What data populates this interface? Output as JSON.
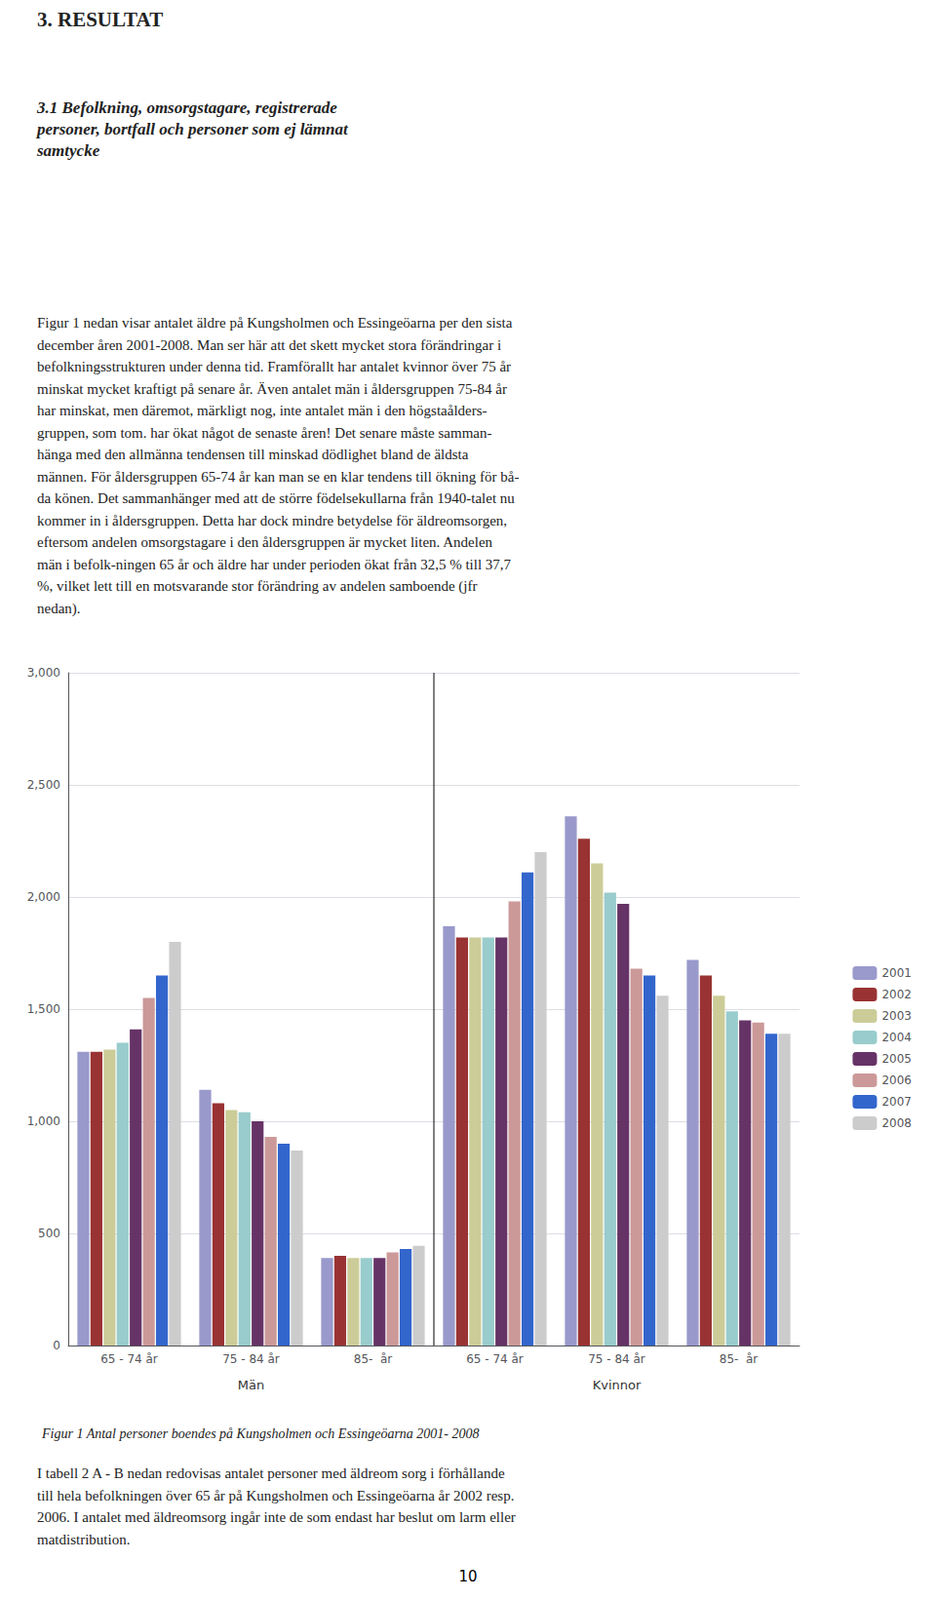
{
  "page": {
    "heading": "3. RESULTAT",
    "subheading": "3.1 Befolkning, omsorgstagare, registrerade\npersoner, bortfall och personer som ej lämnat\nsamtycke",
    "paragraph": "Figur 1 nedan visar antalet äldre på Kungsholmen och Essingeöarna per den sista\ndecember åren 2001-2008. Man ser här att det skett mycket stora förändringar i\nbefolkningsstrukturen under denna tid. Framförallt har antalet kvinnor över 75 år\nminskat mycket kraftigt på senare år. Även antalet män i åldersgruppen 75-84 år\nhar minskat, men däremot, märkligt nog, inte antalet män i den högstaålders-\ngruppen, som tom. har ökat något de senaste åren! Det senare måste samman-\nhänga med den allmänna tendensen till minskad dödlighet bland de äldsta\nmännen. För åldersgruppen 65-74 år kan man se en klar tendens till ökning för bå-\nda könen. Det sammanhänger med att de större födelsekullarna från 1940-talet nu\nkommer in i åldersgruppen. Detta har dock mindre betydelse för äldreomsorgen,\neftersom andelen omsorgstagare i den åldersgruppen är mycket liten. Andelen\nmän i befolk-ningen 65 år och äldre har under perioden ökat från 32,5 % till 37,7\n%, vilket lett till en motsvarande stor förändring av andelen samboende (jfr\nnedan).",
    "text_after": "I tabell 2 A - B nedan redovisas antalet personer med äldreom sorg i förhållande\ntill hela befolkningen över 65 år på Kungsholmen och Essingeöarna år 2002 resp.\n2006. I antalet med äldreomsorg ingår inte de som endast har beslut om larm eller\nmatdistribution.",
    "page_number": "10"
  },
  "chart_data": {
    "type": "bar",
    "title": "Figur 1 Antal personer boendes på Kungsholmen och Essingeöarna 2001- 2008",
    "categories": [
      "65 - 74 år",
      "75 - 84 år",
      "85-  år",
      "65 - 74 år",
      "75 - 84 år",
      "85-  år"
    ],
    "annotations": [
      "Män",
      "Kvinnor"
    ],
    "series": [
      {
        "name": "2001",
        "color": "#9999cc",
        "values": [
          1310,
          1140,
          390,
          1870,
          2360,
          1720
        ]
      },
      {
        "name": "2002",
        "color": "#993333",
        "values": [
          1310,
          1080,
          400,
          1820,
          2260,
          1650
        ]
      },
      {
        "name": "2003",
        "color": "#cccc99",
        "values": [
          1320,
          1050,
          390,
          1820,
          2150,
          1560
        ]
      },
      {
        "name": "2004",
        "color": "#99cccc",
        "values": [
          1350,
          1040,
          390,
          1820,
          2020,
          1490
        ]
      },
      {
        "name": "2005",
        "color": "#663366",
        "values": [
          1410,
          1000,
          390,
          1820,
          1970,
          1450
        ]
      },
      {
        "name": "2006",
        "color": "#cc9999",
        "values": [
          1550,
          930,
          415,
          1980,
          1680,
          1440
        ]
      },
      {
        "name": "2007",
        "color": "#3366cc",
        "values": [
          1650,
          900,
          430,
          2110,
          1650,
          1390
        ]
      },
      {
        "name": "2008",
        "color": "#cccccc",
        "values": [
          1800,
          870,
          445,
          2200,
          1560,
          1390
        ]
      }
    ],
    "ylim": [
      0,
      3000
    ],
    "yticks": [
      0,
      500,
      1000,
      1500,
      2000,
      2500,
      3000
    ],
    "grid": true,
    "legend": "right"
  }
}
